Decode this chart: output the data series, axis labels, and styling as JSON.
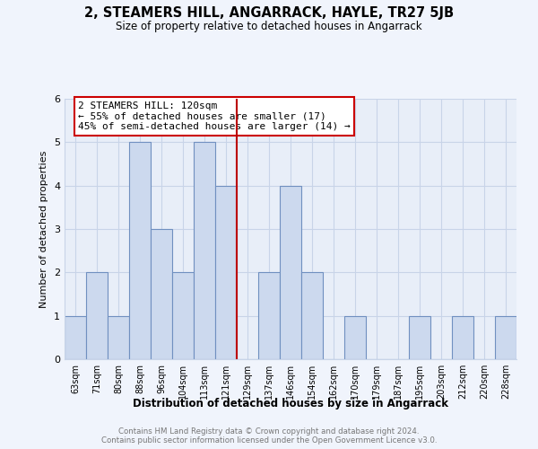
{
  "title": "2, STEAMERS HILL, ANGARRACK, HAYLE, TR27 5JB",
  "subtitle": "Size of property relative to detached houses in Angarrack",
  "xlabel": "Distribution of detached houses by size in Angarrack",
  "ylabel": "Number of detached properties",
  "bin_labels": [
    "63sqm",
    "71sqm",
    "80sqm",
    "88sqm",
    "96sqm",
    "104sqm",
    "113sqm",
    "121sqm",
    "129sqm",
    "137sqm",
    "146sqm",
    "154sqm",
    "162sqm",
    "170sqm",
    "179sqm",
    "187sqm",
    "195sqm",
    "203sqm",
    "212sqm",
    "220sqm",
    "228sqm"
  ],
  "counts": [
    1,
    2,
    1,
    5,
    3,
    2,
    5,
    4,
    0,
    2,
    4,
    2,
    0,
    1,
    0,
    0,
    1,
    0,
    1,
    0,
    1
  ],
  "bar_color": "#ccd9ee",
  "bar_edge_color": "#7090c0",
  "highlight_bar_index": 7,
  "highlight_line_color": "#bb0000",
  "ylim": [
    0,
    6
  ],
  "yticks": [
    0,
    1,
    2,
    3,
    4,
    5,
    6
  ],
  "annotation_title": "2 STEAMERS HILL: 120sqm",
  "annotation_line1": "← 55% of detached houses are smaller (17)",
  "annotation_line2": "45% of semi-detached houses are larger (14) →",
  "annotation_box_edge": "#cc0000",
  "footer_line1": "Contains HM Land Registry data © Crown copyright and database right 2024.",
  "footer_line2": "Contains public sector information licensed under the Open Government Licence v3.0.",
  "background_color": "#f0f4fc",
  "plot_bg_color": "#e8eef8",
  "grid_color": "#c8d4e8"
}
